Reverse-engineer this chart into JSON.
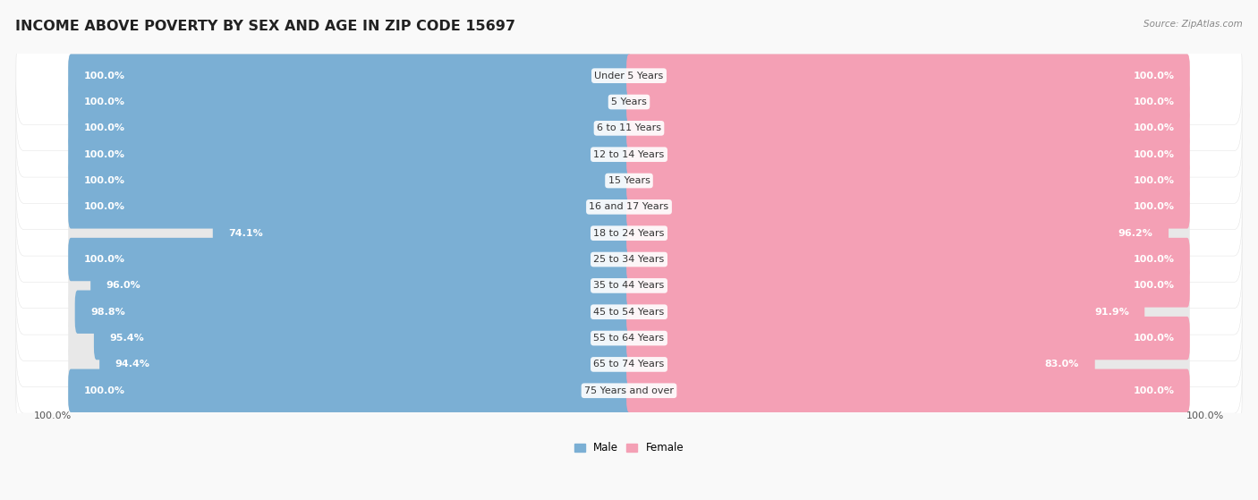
{
  "title": "INCOME ABOVE POVERTY BY SEX AND AGE IN ZIP CODE 15697",
  "source": "Source: ZipAtlas.com",
  "categories": [
    "Under 5 Years",
    "5 Years",
    "6 to 11 Years",
    "12 to 14 Years",
    "15 Years",
    "16 and 17 Years",
    "18 to 24 Years",
    "25 to 34 Years",
    "35 to 44 Years",
    "45 to 54 Years",
    "55 to 64 Years",
    "65 to 74 Years",
    "75 Years and over"
  ],
  "male_values": [
    100.0,
    100.0,
    100.0,
    100.0,
    100.0,
    100.0,
    74.1,
    100.0,
    96.0,
    98.8,
    95.4,
    94.4,
    100.0
  ],
  "female_values": [
    100.0,
    100.0,
    100.0,
    100.0,
    100.0,
    100.0,
    96.2,
    100.0,
    100.0,
    91.9,
    100.0,
    83.0,
    100.0
  ],
  "male_color": "#7bafd4",
  "female_color": "#f4a0b5",
  "male_label": "Male",
  "female_label": "Female",
  "bg_color": "#f9f9f9",
  "bar_bg_color": "#e8e8e8",
  "row_bg_color": "#ffffff",
  "bar_height": 0.65,
  "title_fontsize": 11.5,
  "value_fontsize": 8.0,
  "category_fontsize": 8.0,
  "footer_value_left": "100.0%",
  "footer_value_right": "100.0%"
}
